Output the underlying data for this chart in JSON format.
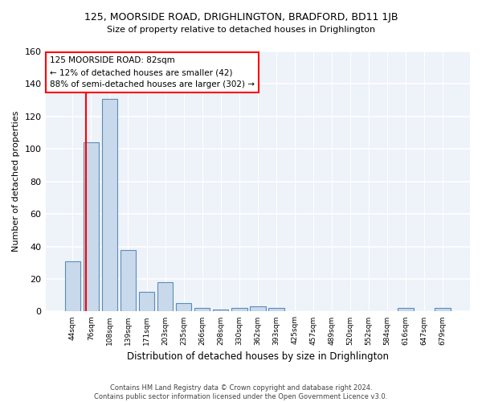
{
  "title1": "125, MOORSIDE ROAD, DRIGHLINGTON, BRADFORD, BD11 1JB",
  "title2": "Size of property relative to detached houses in Drighlington",
  "xlabel": "Distribution of detached houses by size in Drighlington",
  "ylabel": "Number of detached properties",
  "footer1": "Contains HM Land Registry data © Crown copyright and database right 2024.",
  "footer2": "Contains public sector information licensed under the Open Government Licence v3.0.",
  "bin_labels": [
    "44sqm",
    "76sqm",
    "108sqm",
    "139sqm",
    "171sqm",
    "203sqm",
    "235sqm",
    "266sqm",
    "298sqm",
    "330sqm",
    "362sqm",
    "393sqm",
    "425sqm",
    "457sqm",
    "489sqm",
    "520sqm",
    "552sqm",
    "584sqm",
    "616sqm",
    "647sqm",
    "679sqm"
  ],
  "bar_values": [
    31,
    104,
    131,
    38,
    12,
    18,
    5,
    2,
    1,
    2,
    3,
    2,
    0,
    0,
    0,
    0,
    0,
    0,
    2,
    0,
    2
  ],
  "bar_color": "#c9d9ec",
  "bar_edge_color": "#5b8db8",
  "ylim": [
    0,
    160
  ],
  "yticks": [
    0,
    20,
    40,
    60,
    80,
    100,
    120,
    140,
    160
  ],
  "annotation_line1": "125 MOORSIDE ROAD: 82sqm",
  "annotation_line2": "← 12% of detached houses are smaller (42)",
  "annotation_line3": "88% of semi-detached houses are larger (302) →",
  "annotation_box_color": "white",
  "annotation_box_edge_color": "red",
  "red_line_color": "red",
  "background_color": "#ffffff",
  "plot_bg_color": "#eef2f9",
  "footer_color": "#444444"
}
